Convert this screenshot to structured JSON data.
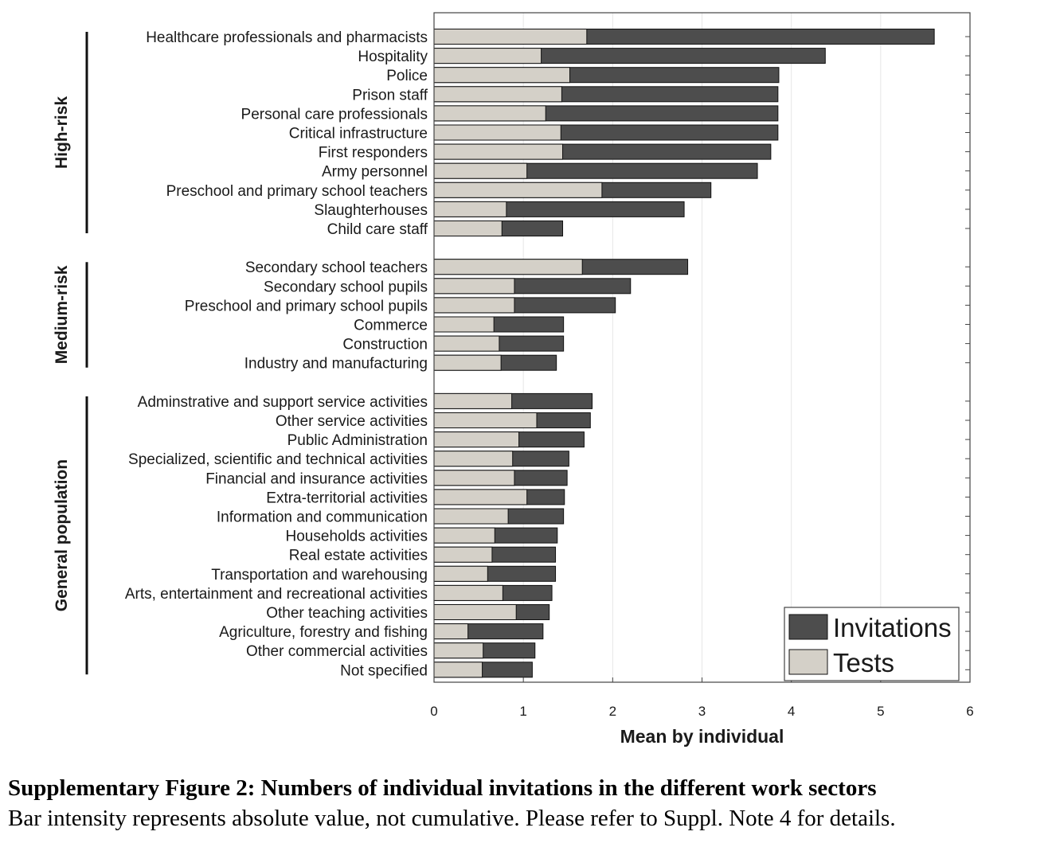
{
  "chart_data": {
    "type": "bar",
    "orientation": "horizontal",
    "stacking": "overlaid (not cumulative)",
    "xlabel": "Mean by individual",
    "ylabel": "",
    "xlim": [
      0,
      6
    ],
    "xticks": [
      0,
      1,
      2,
      3,
      4,
      5,
      6
    ],
    "grid": "vertical lines",
    "legend_position": "bottom-right",
    "legend": [
      {
        "name": "Invitations",
        "color": "#4d4d4d"
      },
      {
        "name": "Tests",
        "color": "#d4d0c8"
      }
    ],
    "groups": [
      {
        "name": "High-risk",
        "categories": [
          "Healthcare professionals and pharmacists",
          "Hospitality",
          "Police",
          "Prison staff",
          "Personal care professionals",
          "Critical infrastructure",
          "First responders",
          "Army personnel",
          "Preschool and primary school teachers",
          "Slaughterhouses",
          "Child care staff"
        ],
        "invitations": [
          5.6,
          4.38,
          3.86,
          3.85,
          3.85,
          3.85,
          3.77,
          3.62,
          3.1,
          2.8,
          1.44
        ],
        "tests": [
          1.71,
          1.2,
          1.52,
          1.43,
          1.25,
          1.42,
          1.44,
          1.04,
          1.88,
          0.81,
          0.76
        ]
      },
      {
        "name": "Medium-risk",
        "categories": [
          "Secondary school teachers",
          "Secondary school pupils",
          "Preschool and primary school pupils",
          "Commerce",
          "Construction",
          "Industry and manufacturing"
        ],
        "invitations": [
          2.84,
          2.2,
          2.03,
          1.45,
          1.45,
          1.37
        ],
        "tests": [
          1.66,
          0.9,
          0.9,
          0.67,
          0.73,
          0.75
        ]
      },
      {
        "name": "General population",
        "categories": [
          "Adminstrative and support service activities",
          "Other service activities",
          "Public Administration",
          "Specialized, scientific and technical activities",
          "Financial and insurance activities",
          "Extra-territorial activities",
          "Information and communication",
          "Households activities",
          "Real estate activities",
          "Transportation and warehousing",
          "Arts, entertainment and recreational activities",
          "Other teaching activities",
          "Agriculture, forestry and fishing",
          "Other commercial activities",
          "Not specified"
        ],
        "invitations": [
          1.77,
          1.75,
          1.68,
          1.51,
          1.49,
          1.46,
          1.45,
          1.38,
          1.36,
          1.36,
          1.32,
          1.29,
          1.22,
          1.13,
          1.1
        ],
        "tests": [
          0.87,
          1.15,
          0.95,
          0.88,
          0.9,
          1.04,
          0.83,
          0.68,
          0.65,
          0.6,
          0.77,
          0.92,
          0.38,
          0.55,
          0.54
        ]
      }
    ]
  },
  "caption": {
    "title": "Supplementary Figure 2: Numbers of individual invitations in the different work sectors",
    "text": "Bar intensity represents absolute value, not cumulative. Please refer to Suppl. Note 4 for details."
  }
}
